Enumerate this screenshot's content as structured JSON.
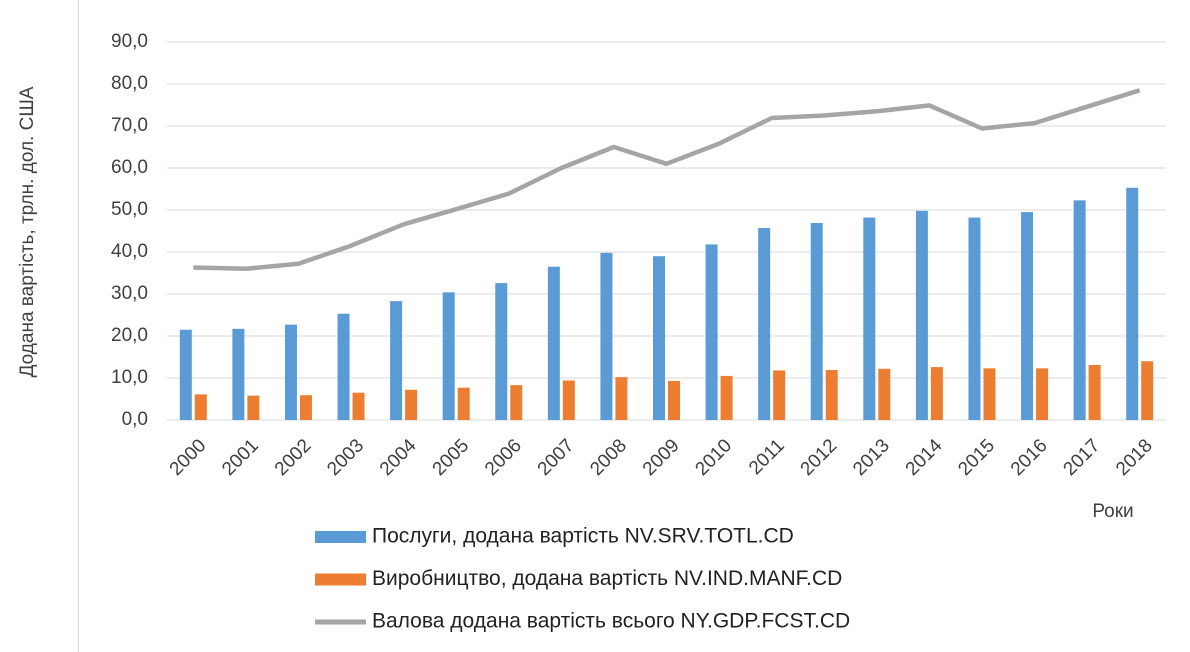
{
  "chart_data": {
    "type": "bar_line",
    "y_label": "Додана вартість, трлн. дол. США",
    "x_label": "Роки",
    "categories": [
      "2000",
      "2001",
      "2002",
      "2003",
      "2004",
      "2005",
      "2006",
      "2007",
      "2008",
      "2009",
      "2010",
      "2011",
      "2012",
      "2013",
      "2014",
      "2015",
      "2016",
      "2017",
      "2018"
    ],
    "series": [
      {
        "name": "Послуги, додана вартість NV.SRV.TOTL.CD",
        "type": "bar",
        "color": "#5b9bd5",
        "values": [
          21.5,
          21.7,
          22.7,
          25.3,
          28.3,
          30.4,
          32.6,
          36.5,
          39.8,
          39.0,
          41.8,
          45.7,
          46.9,
          48.2,
          49.8,
          48.2,
          49.5,
          52.3,
          55.3
        ]
      },
      {
        "name": "Виробництво, додана вартість NV.IND.MANF.CD",
        "type": "bar",
        "color": "#ed7d31",
        "values": [
          6.1,
          5.8,
          5.9,
          6.5,
          7.2,
          7.7,
          8.3,
          9.4,
          10.2,
          9.3,
          10.5,
          11.8,
          11.9,
          12.2,
          12.6,
          12.3,
          12.3,
          13.1,
          14.0
        ]
      },
      {
        "name": "Валова додана вартість всього NY.GDP.FCST.CD",
        "type": "line",
        "color": "#a5a5a5",
        "values": [
          36.3,
          36.0,
          37.2,
          41.5,
          46.6,
          50.2,
          53.9,
          60.0,
          65.0,
          61.0,
          65.8,
          71.9,
          72.5,
          73.5,
          74.9,
          69.4,
          70.7,
          74.6,
          78.5
        ]
      }
    ],
    "ylim": [
      0,
      90
    ],
    "yticks": [
      {
        "value": 0,
        "label": "0,0"
      },
      {
        "value": 10,
        "label": "10,0"
      },
      {
        "value": 20,
        "label": "20,0"
      },
      {
        "value": 30,
        "label": "30,0"
      },
      {
        "value": 40,
        "label": "40,0"
      },
      {
        "value": 50,
        "label": "50,0"
      },
      {
        "value": 60,
        "label": "60,0"
      },
      {
        "value": 70,
        "label": "70,0"
      },
      {
        "value": 80,
        "label": "80,0"
      },
      {
        "value": 90,
        "label": "90,0"
      }
    ],
    "grid": true
  }
}
